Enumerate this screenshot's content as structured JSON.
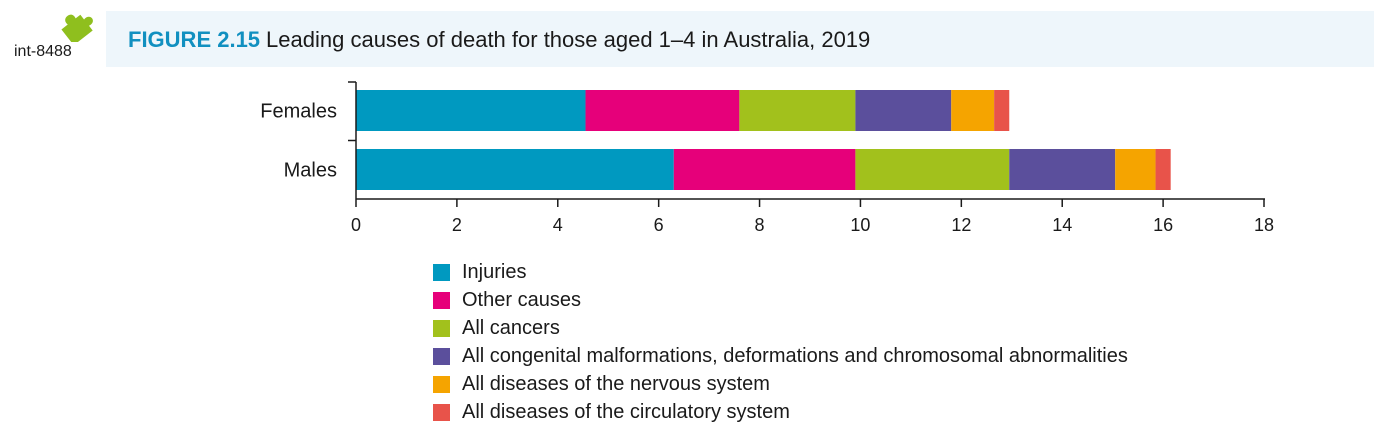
{
  "resource": {
    "id_label": "int-8488",
    "icon": "puzzle-piece-icon"
  },
  "figure": {
    "number": "FIGURE 2.15",
    "title": "Leading causes of death for those aged 1–4 in Australia, 2019"
  },
  "chart_data": {
    "type": "bar",
    "orientation": "horizontal",
    "stacked": true,
    "categories": [
      "Females",
      "Males"
    ],
    "series": [
      {
        "name": "Injuries",
        "color": "#0099c0",
        "values": [
          4.55,
          6.3
        ]
      },
      {
        "name": "Other causes",
        "color": "#e6007a",
        "values": [
          3.05,
          3.6
        ]
      },
      {
        "name": "All cancers",
        "color": "#a2c11c",
        "values": [
          2.3,
          3.05
        ]
      },
      {
        "name": "All congenital malformations, deformations and chromosomal abnormalities",
        "color": "#5b4f9c",
        "values": [
          1.9,
          2.1
        ]
      },
      {
        "name": "All diseases of the nervous system",
        "color": "#f5a400",
        "values": [
          0.85,
          0.8
        ]
      },
      {
        "name": "All diseases of the circulatory system",
        "color": "#e8534a",
        "values": [
          0.3,
          0.3
        ]
      }
    ],
    "xlim": [
      0,
      18
    ],
    "xticks": [
      "0",
      "2",
      "4",
      "6",
      "8",
      "10",
      "12",
      "14",
      "16",
      "18"
    ],
    "xlabel": "",
    "ylabel": "",
    "grid": false,
    "legend_position": "bottom"
  }
}
